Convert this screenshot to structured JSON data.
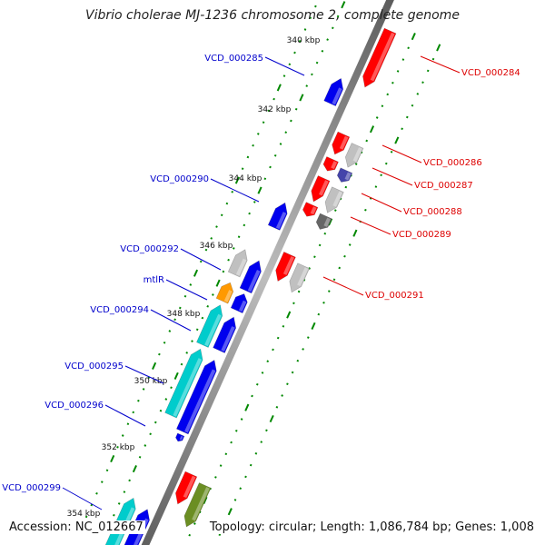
{
  "title": "Vibrio cholerae MJ-1236 chromosome 2, complete genome",
  "footer": {
    "accession": "Accession: NC_012667",
    "topology": "Topology: circular; Length: 1,086,784 bp; Genes: 1,008"
  },
  "ticks": [
    "340 kbp",
    "342 kbp",
    "344 kbp",
    "346 kbp",
    "348 kbp",
    "350 kbp",
    "352 kbp",
    "354 kbp"
  ],
  "genes_forward": [
    {
      "label": "VCD_000285",
      "color": "#0000ee"
    },
    {
      "label": "VCD_000290",
      "color": "#0000ee"
    },
    {
      "label": "VCD_000292",
      "color": "#c0c0c0"
    },
    {
      "label": "mtlR",
      "color": "#ff9900"
    },
    {
      "label": "VCD_000294",
      "color": "#00cccc"
    },
    {
      "label": "VCD_000295",
      "color": "#00cccc"
    },
    {
      "label": "VCD_000296",
      "color": "#0000ee"
    },
    {
      "label": "VCD_000299",
      "color": "#00cccc"
    }
  ],
  "genes_reverse": [
    {
      "label": "VCD_000284",
      "color": "#ff0000"
    },
    {
      "label": "VCD_000286",
      "color": "#ff0000"
    },
    {
      "label": "VCD_000287",
      "color": "#ff0000"
    },
    {
      "label": "VCD_000288",
      "color": "#ff0000"
    },
    {
      "label": "VCD_000289",
      "color": "#ff0000"
    },
    {
      "label": "VCD_000291",
      "color": "#ff0000"
    }
  ],
  "colors": {
    "forward_label": "#0000cc",
    "reverse_label": "#dd0000",
    "backbone": "#888888",
    "tick_dots": "#008800"
  }
}
